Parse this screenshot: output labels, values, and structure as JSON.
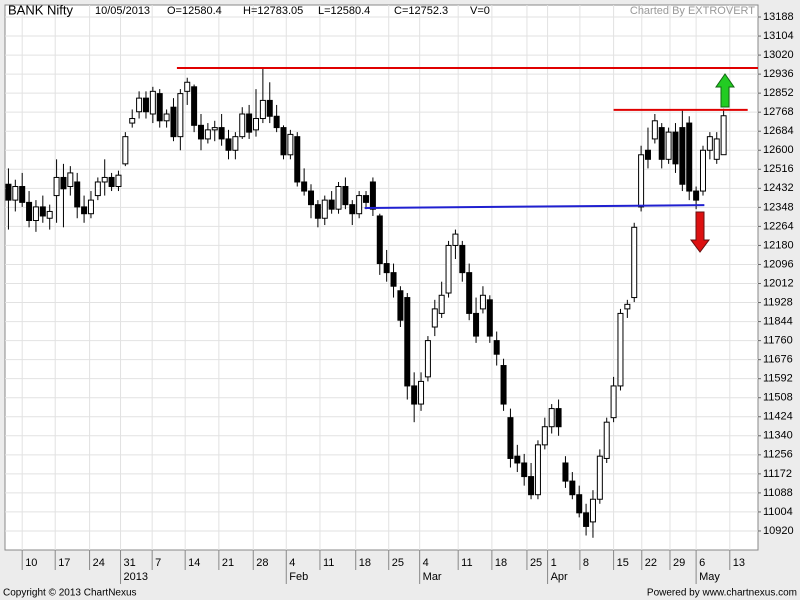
{
  "chart_data": {
    "type": "candlestick",
    "header": {
      "symbol": "BANK Nifty",
      "date": "10/05/2013",
      "open": "O=12580.4",
      "high": "H=12783.05",
      "low": "L=12580.4",
      "close": "C=12752.3",
      "volume": "V=0",
      "credit": "Charted By EXTROVERT"
    },
    "footer": {
      "copyright": "Copyright © 2013 ChartNexus",
      "powered": "Powered by www.chartnexus.com"
    },
    "open": [
      12450,
      12380,
      12440,
      12370,
      12290,
      12350,
      12300,
      12400,
      12480,
      12440,
      12460,
      12350,
      12320,
      12400,
      12460,
      12480,
      12440,
      12540,
      12720,
      12770,
      12830,
      12760,
      12850,
      12730,
      12790,
      12660,
      12860,
      12880,
      12710,
      12650,
      12690,
      12700,
      12650,
      12600,
      12660,
      12760,
      12690,
      12740,
      12820,
      12750,
      12700,
      12580,
      12660,
      12460,
      12420,
      12360,
      12300,
      12380,
      12340,
      12440,
      12360,
      12320,
      12400,
      12460,
      12310,
      12100,
      12060,
      11980,
      11950,
      11560,
      11480,
      11600,
      11820,
      11880,
      11970,
      12180,
      12180,
      12060,
      11880,
      11900,
      11940,
      11760,
      11650,
      11420,
      11250,
      11220,
      11160,
      11080,
      11300,
      11380,
      11460,
      11220,
      11140,
      11080,
      11000,
      10960,
      11060,
      11240,
      11420,
      11560,
      11900,
      11950,
      12350,
      12600,
      12650,
      12700,
      12560,
      12680,
      12700,
      12720,
      12420,
      12420,
      12600,
      12560,
      12580.4
    ],
    "high": [
      12520,
      12470,
      12500,
      12420,
      12380,
      12400,
      12360,
      12560,
      12540,
      12530,
      12500,
      12400,
      12420,
      12480,
      12560,
      12500,
      12510,
      12680,
      12780,
      12860,
      12860,
      12880,
      12870,
      12780,
      12830,
      12870,
      12920,
      12890,
      12760,
      12720,
      12730,
      12760,
      12690,
      12680,
      12790,
      12800,
      12870,
      12960,
      12900,
      12800,
      12710,
      12690,
      12680,
      12520,
      12450,
      12380,
      12400,
      12420,
      12460,
      12480,
      12380,
      12420,
      12420,
      12480,
      12320,
      12160,
      12100,
      12000,
      11970,
      11620,
      11620,
      11780,
      11940,
      12020,
      12200,
      12250,
      12200,
      12100,
      11950,
      12000,
      11960,
      11800,
      11680,
      11460,
      11300,
      11260,
      11220,
      11320,
      11420,
      11480,
      11500,
      11250,
      11180,
      11120,
      11040,
      11100,
      11280,
      11420,
      11600,
      11900,
      11940,
      12280,
      12620,
      12700,
      12760,
      12720,
      12700,
      12720,
      12780,
      12750,
      12440,
      12620,
      12680,
      12680,
      12783.05
    ],
    "low": [
      12250,
      12330,
      12350,
      12260,
      12240,
      12280,
      12250,
      12280,
      12260,
      12400,
      12300,
      12280,
      12300,
      12380,
      12400,
      12420,
      12420,
      12530,
      12700,
      12740,
      12740,
      12720,
      12700,
      12700,
      12640,
      12600,
      12800,
      12680,
      12600,
      12630,
      12640,
      12620,
      12560,
      12560,
      12650,
      12650,
      12660,
      12720,
      12720,
      12680,
      12560,
      12560,
      12440,
      12400,
      12300,
      12260,
      12270,
      12320,
      12320,
      12340,
      12270,
      12300,
      12340,
      12310,
      12050,
      12020,
      11950,
      11820,
      11500,
      11400,
      11450,
      11580,
      11780,
      11860,
      11950,
      12120,
      12020,
      11850,
      11750,
      11880,
      11750,
      11650,
      11450,
      11200,
      11180,
      11120,
      11060,
      11060,
      11280,
      11350,
      11340,
      11110,
      11060,
      10980,
      10900,
      10890,
      11040,
      11220,
      11400,
      11540,
      11860,
      11930,
      12330,
      12520,
      12630,
      12520,
      12540,
      12500,
      12420,
      12380,
      12340,
      12400,
      12560,
      12540,
      12580.4
    ],
    "close": [
      12380,
      12440,
      12370,
      12290,
      12350,
      12310,
      12330,
      12480,
      12430,
      12500,
      12350,
      12320,
      12380,
      12460,
      12480,
      12440,
      12490,
      12660,
      12740,
      12830,
      12770,
      12860,
      12730,
      12760,
      12660,
      12850,
      12900,
      12710,
      12650,
      12690,
      12700,
      12650,
      12600,
      12660,
      12760,
      12680,
      12740,
      12820,
      12750,
      12700,
      12580,
      12670,
      12460,
      12420,
      12360,
      12300,
      12380,
      12340,
      12440,
      12360,
      12320,
      12400,
      12370,
      12340,
      12100,
      12060,
      12000,
      11850,
      11560,
      11480,
      11580,
      11760,
      11900,
      11960,
      12180,
      12230,
      12060,
      11880,
      11780,
      11960,
      11780,
      11700,
      11480,
      11240,
      11220,
      11160,
      11080,
      11300,
      11380,
      11460,
      11380,
      11140,
      11080,
      11000,
      10940,
      11060,
      11250,
      11400,
      11560,
      11880,
      11920,
      12260,
      12580,
      12560,
      12730,
      12560,
      12680,
      12540,
      12450,
      12420,
      12380,
      12600,
      12660,
      12650,
      12752.3
    ],
    "lines": [
      {
        "color": "#e00000",
        "x": [
          24.5,
          109
        ],
        "y": [
          12963,
          12963
        ]
      },
      {
        "color": "#e00000",
        "x": [
          88,
          107.5
        ],
        "y": [
          12778,
          12778
        ]
      },
      {
        "color": "#2020d0",
        "x": [
          51.8,
          101.2
        ],
        "y": [
          12345,
          12358
        ]
      }
    ],
    "xlim": [
      -0.5,
      109
    ],
    "ylim": [
      10836,
      13241
    ],
    "xticks": [
      {
        "value": 2.0,
        "label": "10"
      },
      {
        "value": 6.8,
        "label": "17"
      },
      {
        "value": 11.8,
        "label": "24"
      },
      {
        "value": 16.3,
        "label": "31"
      },
      {
        "value": 20.9,
        "label": "7"
      },
      {
        "value": 25.7,
        "label": "14"
      },
      {
        "value": 30.6,
        "label": "21"
      },
      {
        "value": 35.6,
        "label": "28"
      },
      {
        "value": 40.4,
        "label": "4"
      },
      {
        "value": 45.3,
        "label": "11"
      },
      {
        "value": 50.5,
        "label": "18"
      },
      {
        "value": 55.3,
        "label": "25"
      },
      {
        "value": 59.8,
        "label": "4"
      },
      {
        "value": 65.4,
        "label": "11"
      },
      {
        "value": 70.3,
        "label": "18"
      },
      {
        "value": 75.4,
        "label": "25"
      },
      {
        "value": 78.4,
        "label": "1"
      },
      {
        "value": 83.1,
        "label": "8"
      },
      {
        "value": 88,
        "label": "15"
      },
      {
        "value": 92.1,
        "label": "22"
      },
      {
        "value": 96.2,
        "label": "29"
      },
      {
        "value": 100,
        "label": "6"
      },
      {
        "value": 104.9,
        "label": "13"
      }
    ],
    "month_ticks": [
      {
        "value": 16.3,
        "label": "2013"
      },
      {
        "value": 40.4,
        "label": "Feb"
      },
      {
        "value": 59.8,
        "label": "Mar"
      },
      {
        "value": 78.4,
        "label": "Apr"
      },
      {
        "value": 100,
        "label": "May"
      }
    ],
    "yticks": [
      13188,
      13104,
      13020,
      12936,
      12852,
      12768,
      12684,
      12600,
      12516,
      12432,
      12348,
      12264,
      12180,
      12096,
      12012,
      11928,
      11844,
      11760,
      11676,
      11592,
      11508,
      11424,
      11340,
      11256,
      11172,
      11088,
      11004,
      10920
    ],
    "grid": true,
    "up_color": "#ffffff",
    "down_color": "#000000"
  }
}
